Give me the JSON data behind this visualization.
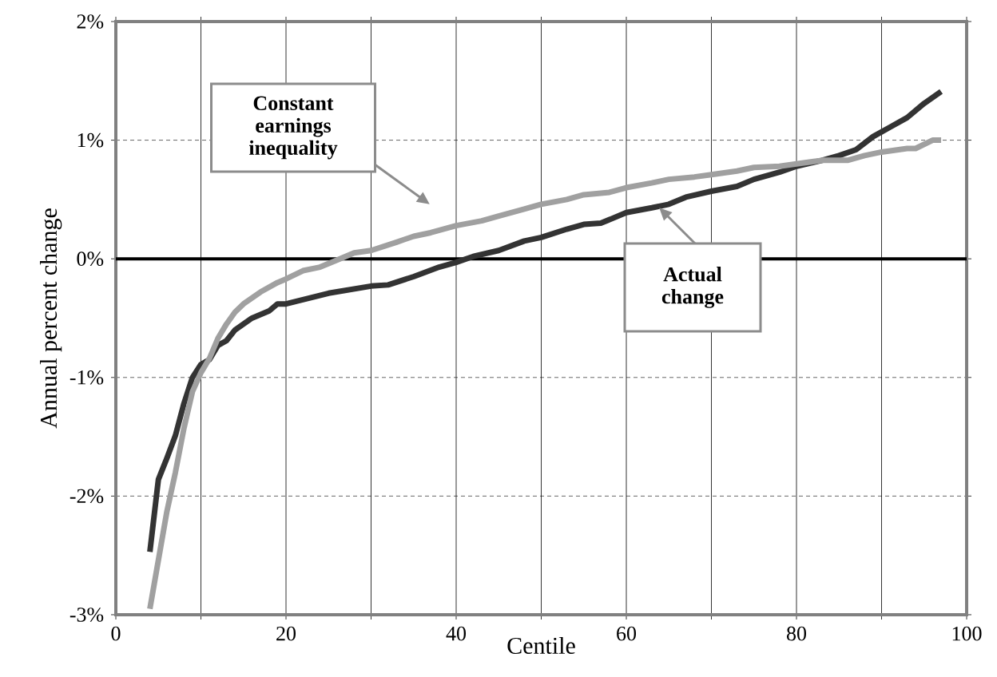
{
  "chart_data": {
    "type": "line",
    "xlabel": "Centile",
    "ylabel": "Annual percent change",
    "xlim": [
      0,
      100
    ],
    "ylim": [
      -3,
      2
    ],
    "xticks": [
      0,
      {
        "value": 10,
        "label": null
      },
      20,
      {
        "value": 30,
        "label": null
      },
      40,
      {
        "value": 50,
        "label": null
      },
      60,
      {
        "value": 70,
        "label": null
      },
      80,
      {
        "value": 90,
        "label": null
      },
      100
    ],
    "yticks": [
      {
        "value": -3,
        "label": "-3%"
      },
      {
        "value": -2,
        "label": "-2%"
      },
      {
        "value": -1,
        "label": "-1%"
      },
      {
        "value": 0,
        "label": "0%"
      },
      {
        "value": 1,
        "label": "1%"
      },
      {
        "value": 2,
        "label": "2%"
      }
    ],
    "grid": true,
    "marker": "none",
    "line_style": "solid",
    "ref_lines": [
      {
        "axis": "y",
        "value": 0,
        "color": "#000000"
      }
    ],
    "annotations": [
      "Constant earnings inequality",
      "Actual change"
    ],
    "series": [
      {
        "color": "#333333",
        "x": [
          4,
          5,
          6,
          7,
          8,
          9,
          10,
          11,
          12,
          13,
          14,
          15,
          16,
          18,
          19,
          20,
          25,
          30,
          32,
          35,
          38,
          40,
          42,
          45,
          48,
          50,
          53,
          55,
          57,
          60,
          63,
          65,
          67,
          70,
          73,
          75,
          78,
          80,
          83,
          85,
          87,
          89,
          91,
          93,
          95,
          97
        ],
        "values": [
          -2.47,
          -1.86,
          -1.68,
          -1.49,
          -1.22,
          -1.0,
          -0.89,
          -0.85,
          -0.73,
          -0.69,
          -0.6,
          -0.55,
          -0.5,
          -0.44,
          -0.38,
          -0.38,
          -0.29,
          -0.23,
          -0.22,
          -0.15,
          -0.07,
          -0.03,
          0.02,
          0.07,
          0.15,
          0.18,
          0.25,
          0.29,
          0.3,
          0.39,
          0.43,
          0.46,
          0.52,
          0.57,
          0.61,
          0.67,
          0.73,
          0.78,
          0.83,
          0.87,
          0.92,
          1.03,
          1.11,
          1.19,
          1.31,
          1.41
        ]
      },
      {
        "color": "#a0a0a0",
        "x": [
          4,
          5,
          6,
          7,
          8,
          9,
          10,
          11,
          12,
          13,
          14,
          15,
          17,
          19,
          20,
          22,
          24,
          26,
          28,
          30,
          33,
          35,
          37,
          40,
          43,
          45,
          48,
          50,
          53,
          55,
          58,
          60,
          63,
          65,
          68,
          70,
          73,
          75,
          78,
          80,
          83,
          86,
          88,
          90,
          93,
          94,
          96,
          97
        ],
        "values": [
          -2.95,
          -2.54,
          -2.13,
          -1.8,
          -1.43,
          -1.12,
          -0.96,
          -0.84,
          -0.67,
          -0.55,
          -0.45,
          -0.38,
          -0.28,
          -0.2,
          -0.17,
          -0.1,
          -0.07,
          -0.01,
          0.05,
          0.07,
          0.14,
          0.19,
          0.22,
          0.28,
          0.32,
          0.36,
          0.42,
          0.46,
          0.5,
          0.54,
          0.56,
          0.6,
          0.64,
          0.67,
          0.69,
          0.71,
          0.74,
          0.77,
          0.78,
          0.8,
          0.83,
          0.83,
          0.87,
          0.9,
          0.93,
          0.93,
          1.0,
          1.0
        ]
      }
    ]
  }
}
